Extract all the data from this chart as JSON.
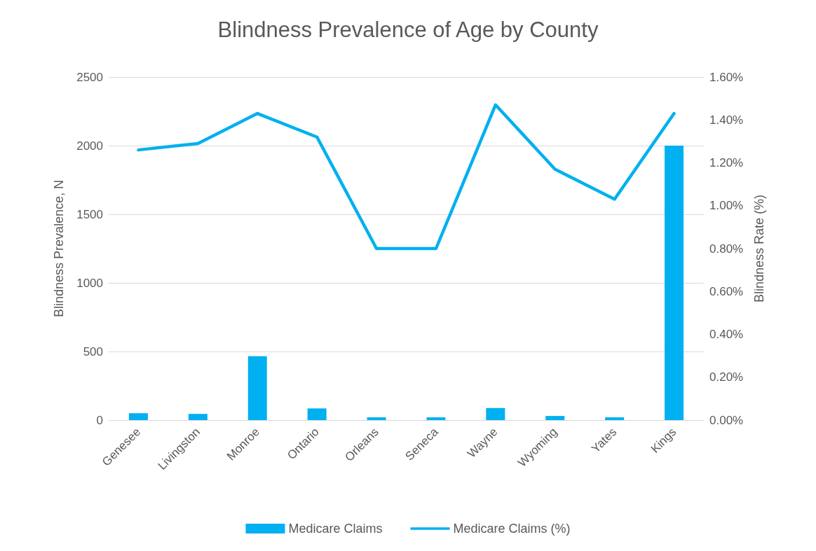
{
  "chart_data": {
    "type": "bar",
    "title": "Blindness Prevalence of Age by County",
    "ylabel": "Blindness Prevalence, N",
    "y2label": "Blindness Rate (%)",
    "categories": [
      "Genesee",
      "Livingston",
      "Monroe",
      "Ontario",
      "Orleans",
      "Seneca",
      "Wayne",
      "Wyoming",
      "Yates",
      "Kings"
    ],
    "series": [
      {
        "name": "Medicare Claims",
        "color": "#00b0f0",
        "values": [
          50,
          45,
          465,
          85,
          20,
          20,
          88,
          30,
          20,
          2000
        ]
      },
      {
        "name": "Medicare Claims (%)",
        "type": "line",
        "axis": "y2",
        "color": "#00b0f0",
        "values": [
          1.26,
          1.29,
          1.43,
          1.32,
          0.8,
          0.8,
          1.47,
          1.17,
          1.03,
          1.43
        ]
      }
    ],
    "ylim": [
      0,
      2500
    ],
    "yticks": [
      0,
      500,
      1000,
      1500,
      2000,
      2500
    ],
    "y2lim": [
      0,
      1.6
    ],
    "y2ticks": [
      {
        "value": 0,
        "label": "0.00%"
      },
      {
        "value": 0.2,
        "label": "0.20%"
      },
      {
        "value": 0.4,
        "label": "0.40%"
      },
      {
        "value": 0.6,
        "label": "0.60%"
      },
      {
        "value": 0.8,
        "label": "0.80%"
      },
      {
        "value": 1.0,
        "label": "1.00%"
      },
      {
        "value": 1.2,
        "label": "1.20%"
      },
      {
        "value": 1.4,
        "label": "1.40%"
      },
      {
        "value": 1.6,
        "label": "1.60%"
      }
    ],
    "grid": "y",
    "legend": "bottom",
    "marker": "none",
    "line_style": "solid"
  }
}
